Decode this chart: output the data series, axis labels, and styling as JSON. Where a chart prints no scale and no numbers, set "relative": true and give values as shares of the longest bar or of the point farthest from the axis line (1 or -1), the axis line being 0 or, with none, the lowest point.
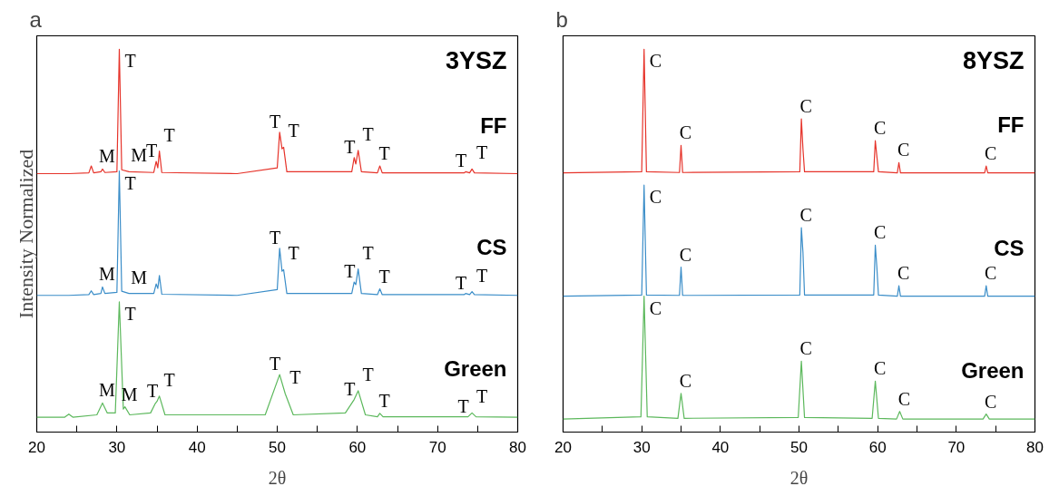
{
  "chart_data": [
    {
      "type": "line",
      "title": "3YSZ",
      "xlabel": "2θ",
      "ylabel": "Intensity Normalized",
      "relative": true,
      "tick_labels": "x",
      "xlim": [
        20,
        80
      ],
      "xticks": [
        20,
        {
          "value": 25,
          "label": null
        },
        30,
        {
          "value": 35,
          "label": null
        },
        40,
        {
          "value": 45,
          "label": null
        },
        50,
        {
          "value": 55,
          "label": null
        },
        60,
        {
          "value": 65,
          "label": null
        },
        70,
        {
          "value": 75,
          "label": null
        },
        80
      ],
      "series": [
        {
          "name": "FF",
          "color": "#e6332a",
          "x": [
            20,
            24,
            26.5,
            26.8,
            27.1,
            28.0,
            28.2,
            28.5,
            30.0,
            30.3,
            30.6,
            31.5,
            34.6,
            34.9,
            35.1,
            35.3,
            35.6,
            45,
            50.0,
            50.3,
            50.6,
            50.8,
            51.2,
            59.3,
            59.6,
            59.8,
            60.1,
            60.5,
            62.5,
            62.8,
            63.1,
            73.3,
            73.5,
            74.0,
            74.3,
            74.6,
            80
          ],
          "values": [
            0.675,
            0.675,
            0.677,
            0.695,
            0.677,
            0.68,
            0.687,
            0.678,
            0.68,
            1.0,
            0.685,
            0.68,
            0.678,
            0.707,
            0.69,
            0.734,
            0.678,
            0.675,
            0.69,
            0.783,
            0.74,
            0.744,
            0.68,
            0.68,
            0.717,
            0.7,
            0.736,
            0.68,
            0.677,
            0.695,
            0.677,
            0.677,
            0.68,
            0.677,
            0.687,
            0.677,
            0.675
          ]
        },
        {
          "name": "CS",
          "color": "#3a8dc8",
          "x": [
            20,
            24,
            26.5,
            26.8,
            27.1,
            28.0,
            28.2,
            28.5,
            30.0,
            30.3,
            30.6,
            31.5,
            34.6,
            34.9,
            35.1,
            35.3,
            35.6,
            45,
            50.0,
            50.3,
            50.6,
            50.8,
            51.2,
            59.3,
            59.6,
            59.8,
            60.1,
            60.5,
            62.5,
            62.8,
            63.1,
            73.3,
            73.5,
            74.0,
            74.3,
            74.6,
            80
          ],
          "values": [
            0.357,
            0.357,
            0.359,
            0.369,
            0.359,
            0.362,
            0.379,
            0.362,
            0.365,
            0.682,
            0.368,
            0.362,
            0.362,
            0.387,
            0.375,
            0.409,
            0.36,
            0.357,
            0.372,
            0.48,
            0.42,
            0.424,
            0.362,
            0.362,
            0.392,
            0.385,
            0.426,
            0.362,
            0.359,
            0.374,
            0.359,
            0.359,
            0.362,
            0.359,
            0.367,
            0.359,
            0.357
          ]
        },
        {
          "name": "Green",
          "color": "#5cb85c",
          "x": [
            20,
            23.5,
            24,
            24.5,
            27.5,
            28.2,
            28.8,
            29.8,
            30.3,
            30.8,
            31.0,
            31.6,
            34.2,
            34.8,
            35.0,
            35.3,
            36.0,
            48.5,
            50.3,
            51.0,
            52.0,
            58.5,
            59.6,
            60.1,
            61.0,
            62.5,
            62.8,
            63.2,
            73.8,
            74.3,
            74.8,
            80
          ],
          "values": [
            0.039,
            0.039,
            0.047,
            0.039,
            0.045,
            0.076,
            0.05,
            0.05,
            0.34,
            0.06,
            0.066,
            0.045,
            0.05,
            0.075,
            0.08,
            0.094,
            0.045,
            0.045,
            0.15,
            0.1,
            0.045,
            0.05,
            0.085,
            0.108,
            0.045,
            0.04,
            0.049,
            0.04,
            0.04,
            0.05,
            0.04,
            0.039
          ]
        }
      ],
      "annotations": [
        "a",
        {
          "text": "T",
          "x": 30.3,
          "y": 1.0
        },
        {
          "text": "M",
          "x": 28.2,
          "y": 0.687
        },
        {
          "text": "M",
          "x": 31.5,
          "y": 0.68
        },
        {
          "text": "T",
          "x": 34.9,
          "y": 0.707
        },
        {
          "text": "T",
          "x": 35.3,
          "y": 0.734
        },
        {
          "text": "T",
          "x": 50.3,
          "y": 0.783
        },
        {
          "text": "T",
          "x": 50.8,
          "y": 0.744
        },
        {
          "text": "T",
          "x": 59.6,
          "y": 0.717
        },
        {
          "text": "T",
          "x": 60.1,
          "y": 0.736
        },
        {
          "text": "T",
          "x": 62.8,
          "y": 0.695
        },
        {
          "text": "T",
          "x": 73.5,
          "y": 0.68
        },
        {
          "text": "T",
          "x": 74.3,
          "y": 0.687
        },
        {
          "text": "T",
          "x": 30.3,
          "y": 0.682
        },
        {
          "text": "M",
          "x": 28.2,
          "y": 0.379
        },
        {
          "text": "M",
          "x": 31.5,
          "y": 0.362
        },
        {
          "text": "T",
          "x": 50.3,
          "y": 0.48
        },
        {
          "text": "T",
          "x": 50.8,
          "y": 0.424
        },
        {
          "text": "T",
          "x": 59.6,
          "y": 0.392
        },
        {
          "text": "T",
          "x": 60.1,
          "y": 0.426
        },
        {
          "text": "T",
          "x": 62.8,
          "y": 0.374
        },
        {
          "text": "T",
          "x": 73.5,
          "y": 0.362
        },
        {
          "text": "T",
          "x": 74.3,
          "y": 0.367
        },
        {
          "text": "T",
          "x": 30.3,
          "y": 0.34
        },
        {
          "text": "M",
          "x": 28.2,
          "y": 0.076
        },
        {
          "text": "M",
          "x": 31.0,
          "y": 0.066
        },
        {
          "text": "T",
          "x": 35.0,
          "y": 0.08
        },
        {
          "text": "T",
          "x": 35.3,
          "y": 0.094
        },
        {
          "text": "T",
          "x": 50.3,
          "y": 0.15
        },
        {
          "text": "T",
          "x": 51.0,
          "y": 0.1
        },
        {
          "text": "T",
          "x": 59.6,
          "y": 0.085
        },
        {
          "text": "T",
          "x": 60.1,
          "y": 0.108
        },
        {
          "text": "T",
          "x": 62.8,
          "y": 0.049
        },
        {
          "text": "T",
          "x": 73.8,
          "y": 0.04
        },
        {
          "text": "T",
          "x": 74.3,
          "y": 0.05
        }
      ]
    },
    {
      "type": "line",
      "title": "8YSZ",
      "xlabel": "2θ",
      "relative": true,
      "tick_labels": "x",
      "xlim": [
        20,
        80
      ],
      "xticks": [
        20,
        {
          "value": 25,
          "label": null
        },
        30,
        {
          "value": 35,
          "label": null
        },
        40,
        {
          "value": 45,
          "label": null
        },
        50,
        {
          "value": 55,
          "label": null
        },
        60,
        {
          "value": 65,
          "label": null
        },
        70,
        {
          "value": 75,
          "label": null
        },
        80
      ],
      "series": [
        {
          "name": "FF",
          "color": "#e6332a",
          "x": [
            20,
            30.0,
            30.3,
            30.6,
            34.8,
            35.0,
            35.2,
            50.1,
            50.3,
            50.5,
            50.7,
            59.5,
            59.7,
            59.9,
            60.1,
            62.5,
            62.7,
            62.9,
            73.6,
            73.8,
            74.0,
            80
          ],
          "values": [
            0.677,
            0.68,
            1.0,
            0.68,
            0.678,
            0.749,
            0.678,
            0.68,
            0.818,
            0.74,
            0.68,
            0.68,
            0.761,
            0.72,
            0.68,
            0.677,
            0.704,
            0.677,
            0.677,
            0.695,
            0.677,
            0.677
          ]
        },
        {
          "name": "CS",
          "color": "#3a8dc8",
          "x": [
            20,
            30.0,
            30.3,
            30.6,
            34.8,
            35.0,
            35.2,
            50.1,
            50.3,
            50.5,
            50.7,
            59.5,
            59.7,
            59.9,
            60.1,
            62.5,
            62.7,
            62.9,
            73.6,
            73.8,
            74.0,
            80
          ],
          "values": [
            0.355,
            0.358,
            0.645,
            0.358,
            0.357,
            0.431,
            0.357,
            0.358,
            0.534,
            0.47,
            0.358,
            0.358,
            0.488,
            0.43,
            0.358,
            0.355,
            0.382,
            0.355,
            0.355,
            0.382,
            0.355,
            0.355
          ]
        },
        {
          "name": "Green",
          "color": "#5cb85c",
          "x": [
            20,
            29.9,
            30.3,
            30.7,
            34.6,
            35.0,
            35.4,
            49.9,
            50.3,
            50.7,
            59.3,
            59.7,
            60.1,
            62.4,
            62.8,
            63.2,
            73.4,
            73.8,
            74.2,
            80
          ],
          "values": [
            0.034,
            0.04,
            0.355,
            0.04,
            0.036,
            0.101,
            0.036,
            0.038,
            0.185,
            0.038,
            0.036,
            0.133,
            0.036,
            0.034,
            0.054,
            0.034,
            0.034,
            0.047,
            0.034,
            0.034
          ]
        }
      ],
      "annotations": [
        "b",
        {
          "text": "C",
          "x": 30.3,
          "y": 1.0
        },
        {
          "text": "C",
          "x": 35.0,
          "y": 0.749
        },
        {
          "text": "C",
          "x": 50.3,
          "y": 0.818
        },
        {
          "text": "C",
          "x": 59.7,
          "y": 0.761
        },
        {
          "text": "C",
          "x": 62.7,
          "y": 0.704
        },
        {
          "text": "C",
          "x": 73.8,
          "y": 0.695
        },
        {
          "text": "C",
          "x": 30.3,
          "y": 0.645
        },
        {
          "text": "C",
          "x": 35.0,
          "y": 0.431
        },
        {
          "text": "C",
          "x": 50.3,
          "y": 0.534
        },
        {
          "text": "C",
          "x": 59.7,
          "y": 0.488
        },
        {
          "text": "C",
          "x": 62.7,
          "y": 0.382
        },
        {
          "text": "C",
          "x": 73.8,
          "y": 0.382
        },
        {
          "text": "C",
          "x": 30.3,
          "y": 0.355
        },
        {
          "text": "C",
          "x": 35.0,
          "y": 0.101
        },
        {
          "text": "C",
          "x": 50.3,
          "y": 0.185
        },
        {
          "text": "C",
          "x": 59.7,
          "y": 0.133
        },
        {
          "text": "C",
          "x": 62.8,
          "y": 0.054
        },
        {
          "text": "C",
          "x": 73.8,
          "y": 0.047
        }
      ]
    }
  ]
}
